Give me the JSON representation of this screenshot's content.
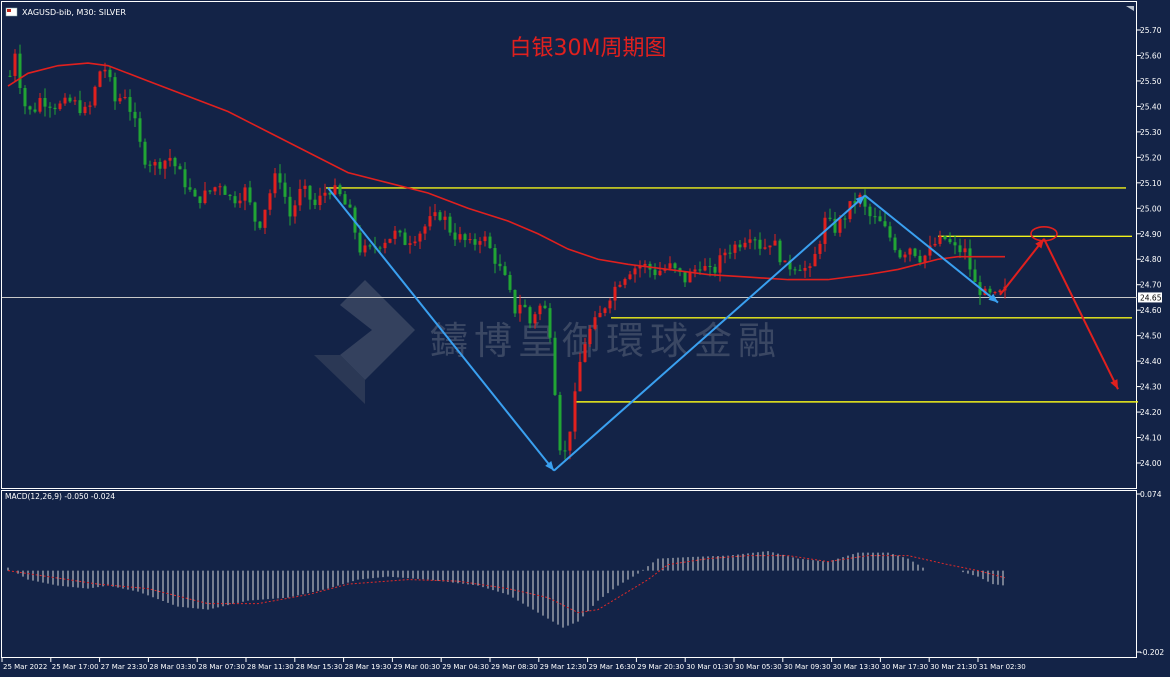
{
  "window": {
    "symbol_label": "XAGUSD-bib, M30:  SILVER",
    "chart_title": "白银30M周期图",
    "watermark_text": "鑄博皇御環球金融",
    "current_price_label": "24.65"
  },
  "colors": {
    "background": "#132347",
    "bull_candle": "#e0201e",
    "bear_candle": "#21a534",
    "ma_line": "#e0201e",
    "level_line": "#f2f21a",
    "wave_arrow": "#3aa0f0",
    "forecast_arrow": "#e0201e",
    "macd_hist": "#d8d8d8",
    "macd_signal": "#e02a2a",
    "axis_text": "#ffffff"
  },
  "chart_data": [
    {
      "type": "candlestick",
      "symbol": "XAGUSD-bib",
      "timeframe": "M30",
      "title": "白银30M周期图",
      "y_ticks": [
        "25.70",
        "25.60",
        "25.50",
        "25.40",
        "25.30",
        "25.20",
        "25.10",
        "25.00",
        "24.90",
        "24.80",
        "24.70",
        "24.60",
        "24.50",
        "24.40",
        "24.30",
        "24.20",
        "24.10",
        "24.00"
      ],
      "ylim": [
        23.92,
        25.74
      ],
      "x_ticks": [
        "25 Mar 2022",
        "25 Mar 17:00",
        "27 Mar 23:30",
        "28 Mar 03:30",
        "28 Mar 07:30",
        "28 Mar 11:30",
        "28 Mar 15:30",
        "28 Mar 19:30",
        "29 Mar 00:30",
        "29 Mar 04:30",
        "29 Mar 08:30",
        "29 Mar 12:30",
        "29 Mar 16:30",
        "29 Mar 20:30",
        "30 Mar 01:30",
        "30 Mar 05:30",
        "30 Mar 09:30",
        "30 Mar 13:30",
        "30 Mar 17:30",
        "30 Mar 21:30",
        "31 Mar 02:30"
      ],
      "close_path": [
        [
          0,
          25.52
        ],
        [
          6,
          25.64
        ],
        [
          12,
          25.42
        ],
        [
          22,
          25.37
        ],
        [
          30,
          25.43
        ],
        [
          48,
          25.4
        ],
        [
          62,
          25.42
        ],
        [
          78,
          25.37
        ],
        [
          90,
          25.54
        ],
        [
          96,
          25.55
        ],
        [
          105,
          25.42
        ],
        [
          115,
          25.45
        ],
        [
          125,
          25.33
        ],
        [
          133,
          25.2
        ],
        [
          145,
          25.17
        ],
        [
          160,
          25.2
        ],
        [
          175,
          25.1
        ],
        [
          185,
          25.03
        ],
        [
          198,
          25.06
        ],
        [
          210,
          25.1
        ],
        [
          222,
          25.03
        ],
        [
          235,
          25.07
        ],
        [
          248,
          24.92
        ],
        [
          258,
          25.04
        ],
        [
          268,
          25.15
        ],
        [
          280,
          24.97
        ],
        [
          292,
          25.08
        ],
        [
          305,
          25.01
        ],
        [
          318,
          25.08
        ],
        [
          328,
          25.06
        ],
        [
          340,
          24.98
        ],
        [
          350,
          24.84
        ],
        [
          358,
          24.83
        ],
        [
          372,
          24.87
        ],
        [
          385,
          24.9
        ],
        [
          395,
          24.87
        ],
        [
          408,
          24.9
        ],
        [
          420,
          24.95
        ],
        [
          432,
          24.98
        ],
        [
          442,
          24.9
        ],
        [
          452,
          24.88
        ],
        [
          462,
          24.85
        ],
        [
          472,
          24.9
        ],
        [
          485,
          24.8
        ],
        [
          495,
          24.72
        ],
        [
          505,
          24.6
        ],
        [
          512,
          24.64
        ],
        [
          520,
          24.55
        ],
        [
          528,
          24.62
        ],
        [
          535,
          24.6
        ],
        [
          541,
          24.5
        ],
        [
          546,
          24.24
        ],
        [
          550,
          24.07
        ],
        [
          555,
          24.04
        ],
        [
          560,
          24.14
        ],
        [
          566,
          24.28
        ],
        [
          572,
          24.45
        ],
        [
          580,
          24.52
        ],
        [
          590,
          24.58
        ],
        [
          600,
          24.66
        ],
        [
          610,
          24.72
        ],
        [
          620,
          24.76
        ],
        [
          632,
          24.78
        ],
        [
          645,
          24.75
        ],
        [
          660,
          24.77
        ],
        [
          675,
          24.72
        ],
        [
          690,
          24.78
        ],
        [
          702,
          24.74
        ],
        [
          715,
          24.83
        ],
        [
          728,
          24.86
        ],
        [
          742,
          24.91
        ],
        [
          752,
          24.84
        ],
        [
          762,
          24.88
        ],
        [
          775,
          24.77
        ],
        [
          788,
          24.78
        ],
        [
          800,
          24.75
        ],
        [
          808,
          24.85
        ],
        [
          815,
          24.95
        ],
        [
          825,
          24.92
        ],
        [
          835,
          24.97
        ],
        [
          842,
          25.02
        ],
        [
          850,
          25.04
        ],
        [
          858,
          24.97
        ],
        [
          868,
          24.95
        ],
        [
          878,
          24.9
        ],
        [
          890,
          24.82
        ],
        [
          900,
          24.85
        ],
        [
          912,
          24.8
        ],
        [
          925,
          24.86
        ],
        [
          935,
          24.88
        ],
        [
          945,
          24.84
        ],
        [
          955,
          24.83
        ],
        [
          965,
          24.7
        ],
        [
          975,
          24.66
        ],
        [
          985,
          24.65
        ],
        [
          997,
          24.68
        ]
      ],
      "moving_average": {
        "values": [
          [
            0,
            25.48
          ],
          [
            20,
            25.53
          ],
          [
            50,
            25.56
          ],
          [
            80,
            25.57
          ],
          [
            100,
            25.56
          ],
          [
            140,
            25.5
          ],
          [
            180,
            25.44
          ],
          [
            220,
            25.38
          ],
          [
            260,
            25.3
          ],
          [
            300,
            25.22
          ],
          [
            340,
            25.14
          ],
          [
            380,
            25.1
          ],
          [
            420,
            25.06
          ],
          [
            460,
            25.0
          ],
          [
            500,
            24.95
          ],
          [
            530,
            24.9
          ],
          [
            560,
            24.84
          ],
          [
            590,
            24.8
          ],
          [
            620,
            24.78
          ],
          [
            660,
            24.76
          ],
          [
            700,
            24.74
          ],
          [
            740,
            24.73
          ],
          [
            780,
            24.72
          ],
          [
            820,
            24.72
          ],
          [
            860,
            24.74
          ],
          [
            890,
            24.76
          ],
          [
            910,
            24.78
          ],
          [
            930,
            24.8
          ],
          [
            950,
            24.81
          ],
          [
            970,
            24.81
          ],
          [
            997,
            24.81
          ]
        ]
      },
      "levels": [
        {
          "price": 25.08,
          "from": 318,
          "to": 1118
        },
        {
          "price": 24.89,
          "from": 930,
          "to": 1124
        },
        {
          "price": 24.57,
          "from": 603,
          "to": 1124
        },
        {
          "price": 24.24,
          "from": 566,
          "to": 1130
        }
      ],
      "current_price": 24.65,
      "wave_arrows": [
        {
          "from": [
            320,
            25.08
          ],
          "to": [
            546,
            23.97
          ]
        },
        {
          "from": [
            546,
            23.97
          ],
          "to": [
            857,
            25.05
          ]
        },
        {
          "from": [
            857,
            25.05
          ],
          "to": [
            990,
            24.63
          ]
        }
      ],
      "forecast_arrows": [
        {
          "from": [
            992,
            24.66
          ],
          "to": [
            1036,
            24.88
          ]
        },
        {
          "from": [
            1036,
            24.88
          ],
          "to": [
            1110,
            24.29
          ]
        }
      ],
      "forecast_circle": {
        "x": 1036,
        "price": 24.9
      }
    },
    {
      "type": "macd_histogram",
      "label": "MACD(12,26,9) -0.050 -0.024",
      "y_ticks": [
        "0.074",
        "-0.202"
      ],
      "ylim": [
        -0.202,
        0.074
      ],
      "hist_path": [
        [
          0,
          0.01
        ],
        [
          20,
          -0.03
        ],
        [
          50,
          -0.05
        ],
        [
          80,
          -0.06
        ],
        [
          100,
          -0.05
        ],
        [
          130,
          -0.07
        ],
        [
          170,
          -0.12
        ],
        [
          200,
          -0.13
        ],
        [
          240,
          -0.1
        ],
        [
          280,
          -0.09
        ],
        [
          320,
          -0.06
        ],
        [
          350,
          -0.03
        ],
        [
          380,
          -0.02
        ],
        [
          420,
          -0.03
        ],
        [
          470,
          -0.05
        ],
        [
          500,
          -0.08
        ],
        [
          520,
          -0.12
        ],
        [
          540,
          -0.16
        ],
        [
          555,
          -0.19
        ],
        [
          570,
          -0.17
        ],
        [
          590,
          -0.1
        ],
        [
          610,
          -0.05
        ],
        [
          630,
          -0.01
        ],
        [
          650,
          0.04
        ],
        [
          680,
          0.045
        ],
        [
          720,
          0.05
        ],
        [
          760,
          0.065
        ],
        [
          790,
          0.04
        ],
        [
          820,
          0.03
        ],
        [
          850,
          0.06
        ],
        [
          880,
          0.06
        ],
        [
          900,
          0.04
        ],
        [
          920,
          0.0
        ],
        [
          950,
          0.0
        ],
        [
          970,
          -0.02
        ],
        [
          985,
          -0.045
        ],
        [
          997,
          -0.05
        ]
      ],
      "signal_path": [
        [
          0,
          0.0
        ],
        [
          40,
          -0.02
        ],
        [
          90,
          -0.045
        ],
        [
          140,
          -0.06
        ],
        [
          200,
          -0.11
        ],
        [
          250,
          -0.11
        ],
        [
          300,
          -0.08
        ],
        [
          340,
          -0.045
        ],
        [
          400,
          -0.03
        ],
        [
          450,
          -0.035
        ],
        [
          500,
          -0.06
        ],
        [
          540,
          -0.09
        ],
        [
          570,
          -0.14
        ],
        [
          590,
          -0.13
        ],
        [
          610,
          -0.09
        ],
        [
          640,
          -0.03
        ],
        [
          660,
          0.02
        ],
        [
          700,
          0.04
        ],
        [
          740,
          0.05
        ],
        [
          780,
          0.05
        ],
        [
          820,
          0.03
        ],
        [
          860,
          0.05
        ],
        [
          900,
          0.05
        ],
        [
          940,
          0.02
        ],
        [
          970,
          0.0
        ],
        [
          997,
          -0.024
        ]
      ]
    }
  ]
}
